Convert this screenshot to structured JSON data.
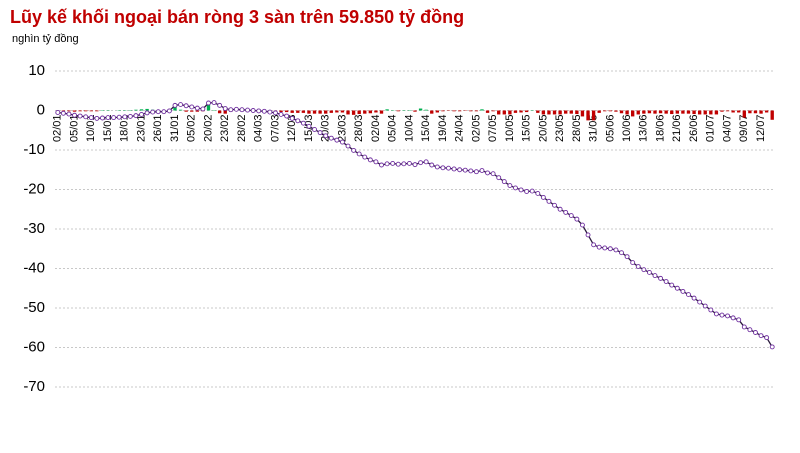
{
  "chart_data": {
    "type": "line",
    "title": "Lũy kế khối ngoại bán ròng 3 sàn trên 59.850 tỷ đồng",
    "subtitle": "nghìn tỷ đồng",
    "categories": [
      "02/01",
      null,
      null,
      "05/01",
      null,
      null,
      "10/01",
      null,
      null,
      "15/01",
      null,
      null,
      "18/01",
      null,
      null,
      "23/01",
      null,
      null,
      "26/01",
      null,
      null,
      "31/01",
      null,
      null,
      "05/02",
      null,
      null,
      "20/02",
      null,
      null,
      "23/02",
      null,
      null,
      "28/02",
      null,
      null,
      "04/03",
      null,
      null,
      "07/03",
      null,
      null,
      "12/03",
      null,
      null,
      "15/03",
      null,
      null,
      "20/03",
      null,
      null,
      "23/03",
      null,
      null,
      "28/03",
      null,
      null,
      "02/04",
      null,
      null,
      "05/04",
      null,
      null,
      "10/04",
      null,
      null,
      "15/04",
      null,
      null,
      "19/04",
      null,
      null,
      "24/04",
      null,
      null,
      "02/05",
      null,
      null,
      "07/05",
      null,
      null,
      "10/05",
      null,
      null,
      "15/05",
      null,
      null,
      "20/05",
      null,
      null,
      "23/05",
      null,
      null,
      "28/05",
      null,
      null,
      "31/05",
      null,
      null,
      "05/06",
      null,
      null,
      "10/06",
      null,
      null,
      "13/06",
      null,
      null,
      "18/06",
      null,
      null,
      "21/06",
      null,
      null,
      "26/06",
      null,
      null,
      "01/07",
      null,
      null,
      "04/07",
      null,
      null,
      "09/07",
      null,
      null,
      "12/07",
      null,
      null
    ],
    "series": [
      {
        "type": "line",
        "color": "#2b1a3d",
        "marker_color": "#7030a0",
        "values": [
          -0.5,
          -0.7,
          -0.9,
          -1.2,
          -1.4,
          -1.6,
          -1.8,
          -2.0,
          -1.9,
          -1.8,
          -1.8,
          -1.7,
          -1.6,
          -1.5,
          -1.3,
          -1.0,
          -0.6,
          -0.4,
          -0.3,
          -0.3,
          -0.1,
          1.3,
          1.5,
          1.2,
          0.9,
          0.6,
          0.4,
          1.9,
          2.0,
          1.3,
          0.5,
          0.2,
          0.3,
          0.2,
          0.1,
          0.0,
          -0.1,
          -0.2,
          -0.4,
          -0.6,
          -1.0,
          -1.4,
          -2.0,
          -2.6,
          -3.2,
          -4.0,
          -4.8,
          -5.6,
          -6.4,
          -7.0,
          -7.5,
          -8.0,
          -9.0,
          -10.1,
          -11.0,
          -11.8,
          -12.5,
          -13.0,
          -13.8,
          -13.5,
          -13.4,
          -13.6,
          -13.5,
          -13.4,
          -13.7,
          -13.2,
          -13.0,
          -13.8,
          -14.3,
          -14.5,
          -14.6,
          -14.8,
          -15.0,
          -15.1,
          -15.3,
          -15.5,
          -15.2,
          -15.8,
          -16.0,
          -17.0,
          -18.0,
          -19.0,
          -19.6,
          -20.1,
          -20.5,
          -20.4,
          -21.0,
          -22.0,
          -23.0,
          -24.0,
          -25.0,
          -25.8,
          -26.6,
          -27.5,
          -29.0,
          -31.5,
          -34.0,
          -34.6,
          -34.8,
          -35.0,
          -35.3,
          -36.0,
          -37.0,
          -38.5,
          -39.5,
          -40.3,
          -41.0,
          -41.8,
          -42.5,
          -43.3,
          -44.2,
          -45.0,
          -45.8,
          -46.6,
          -47.5,
          -48.5,
          -49.5,
          -50.5,
          -51.5,
          -51.8,
          -52.0,
          -52.5,
          -53.0,
          -54.8,
          -55.5,
          -56.2,
          -57.0,
          -57.5,
          -59.85
        ]
      },
      {
        "type": "bar",
        "color": "#c00000",
        "color_positive": "#00b050",
        "values": [
          -0.5,
          -0.2,
          -0.2,
          -0.3,
          -0.2,
          -0.2,
          -0.2,
          -0.2,
          0.1,
          0.1,
          0,
          0.1,
          0.1,
          0.1,
          0.2,
          0.3,
          0.4,
          0.2,
          0.1,
          0,
          0.2,
          1.4,
          0.2,
          -0.3,
          -0.3,
          -0.3,
          -0.2,
          1.5,
          0.1,
          -0.7,
          -0.8,
          -0.3,
          0.1,
          -0.1,
          -0.1,
          -0.1,
          -0.1,
          -0.1,
          -0.2,
          -0.2,
          -0.4,
          -0.4,
          -0.6,
          -0.6,
          -0.6,
          -0.8,
          -0.8,
          -0.8,
          -0.8,
          -0.6,
          -0.5,
          -0.5,
          -1.0,
          -1.1,
          -0.9,
          -0.8,
          -0.7,
          -0.5,
          -0.8,
          0.3,
          0.1,
          -0.2,
          0.1,
          0.1,
          -0.3,
          0.5,
          0.2,
          -0.8,
          -0.5,
          -0.2,
          -0.1,
          -0.2,
          -0.2,
          -0.1,
          -0.2,
          -0.2,
          0.3,
          -0.6,
          -0.2,
          -1.0,
          -1.0,
          -1.0,
          -0.6,
          -0.5,
          -0.4,
          0.1,
          -0.6,
          -1.0,
          -1.0,
          -1.0,
          -1.0,
          -0.8,
          -0.8,
          -0.9,
          -1.5,
          -2.5,
          -2.5,
          -0.6,
          -0.2,
          -0.2,
          -0.3,
          -0.7,
          -1.0,
          -1.5,
          -1.0,
          -0.8,
          -0.7,
          -0.8,
          -0.7,
          -0.8,
          -0.9,
          -0.8,
          -0.8,
          -0.8,
          -0.9,
          -1.0,
          -1.0,
          -1.0,
          -1.0,
          -0.3,
          -0.2,
          -0.5,
          -0.5,
          -1.8,
          -0.7,
          -0.7,
          -0.8,
          -0.5,
          -2.35
        ]
      }
    ],
    "ylim": [
      -70,
      10
    ],
    "yticks": [
      10,
      0,
      -10,
      -20,
      -30,
      -40,
      -50,
      -60,
      -70
    ],
    "grid": true,
    "title_color": "#c00000"
  }
}
